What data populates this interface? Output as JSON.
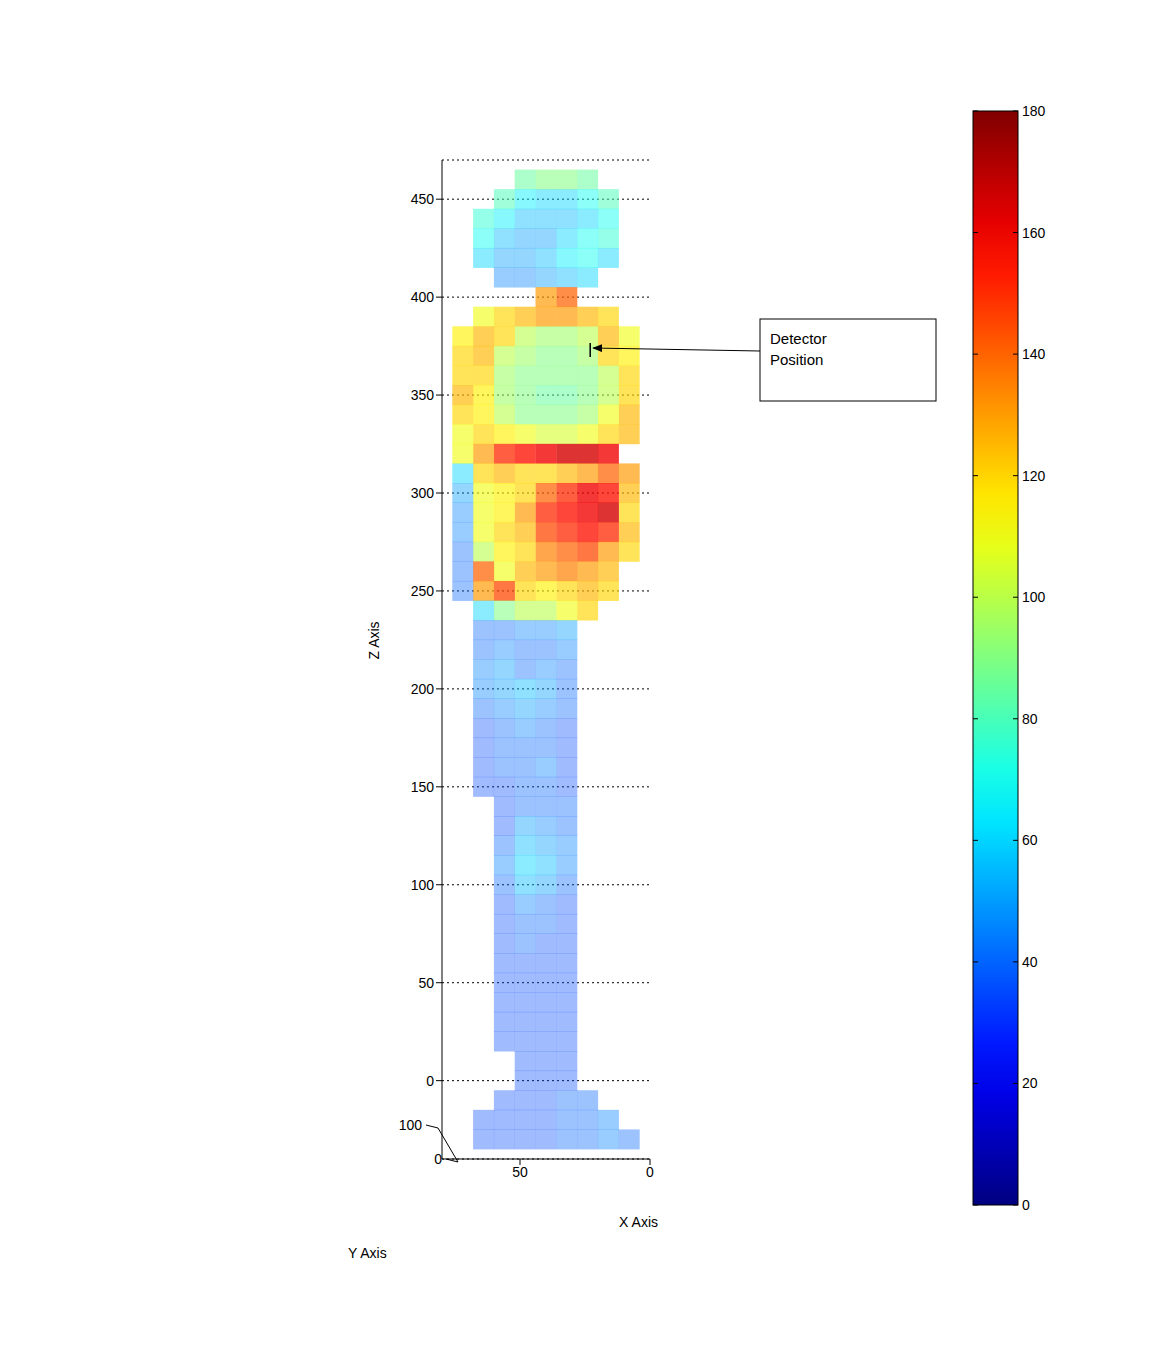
{
  "chart_data": {
    "type": "scatter",
    "x_label": "X Axis",
    "y_label": "Y Axis",
    "z_label": "Z Axis",
    "xlim": [
      0,
      80
    ],
    "xticks": [
      0,
      50
    ],
    "ylim": [
      0,
      100
    ],
    "yticks": [
      0,
      100
    ],
    "zlim": [
      -40,
      470
    ],
    "zticks": [
      0,
      50,
      100,
      150,
      200,
      250,
      300,
      350,
      400,
      450
    ],
    "grid": true,
    "annotation": {
      "text": "Detector Position",
      "x": 23,
      "z": 373
    },
    "colorbar": {
      "range": [
        0,
        180
      ],
      "ticks": [
        0,
        20,
        40,
        60,
        80,
        100,
        120,
        140,
        160,
        180
      ]
    },
    "voxels": {
      "x": [
        8,
        16,
        24,
        32,
        40,
        48,
        56,
        64,
        72
      ],
      "z": [
        460,
        450,
        440,
        430,
        420,
        410,
        400,
        390,
        380,
        370,
        360,
        350,
        340,
        330,
        320,
        310,
        300,
        290,
        280,
        270,
        260,
        250,
        240,
        230,
        220,
        210,
        200,
        190,
        180,
        170,
        160,
        150,
        140,
        130,
        120,
        110,
        100,
        90,
        80,
        70,
        60,
        50,
        40,
        30,
        20,
        10,
        0,
        -10,
        -20,
        -30
      ],
      "dose": [
        [
          null,
          null,
          85,
          90,
          90,
          85,
          null,
          null,
          null
        ],
        [
          null,
          80,
          70,
          60,
          60,
          65,
          80,
          null,
          null
        ],
        [
          null,
          70,
          60,
          55,
          55,
          55,
          65,
          75,
          null
        ],
        [
          null,
          75,
          70,
          60,
          50,
          50,
          55,
          70,
          null
        ],
        [
          null,
          60,
          70,
          65,
          55,
          50,
          50,
          60,
          null
        ],
        [
          null,
          null,
          60,
          55,
          50,
          45,
          45,
          null,
          null
        ],
        [
          null,
          null,
          null,
          140,
          130,
          null,
          null,
          null,
          null
        ],
        [
          null,
          120,
          125,
          130,
          130,
          125,
          120,
          110,
          null
        ],
        [
          110,
          125,
          100,
          95,
          95,
          100,
          120,
          125,
          115
        ],
        [
          115,
          120,
          95,
          90,
          90,
          95,
          100,
          125,
          120
        ],
        [
          120,
          100,
          90,
          90,
          90,
          90,
          95,
          120,
          120
        ],
        [
          120,
          100,
          90,
          85,
          85,
          90,
          95,
          115,
          125
        ],
        [
          125,
          110,
          95,
          90,
          90,
          90,
          100,
          115,
          120
        ],
        [
          125,
          120,
          110,
          105,
          105,
          110,
          115,
          120,
          110
        ],
        [
          null,
          160,
          165,
          165,
          160,
          155,
          150,
          130,
          110
        ],
        [
          130,
          140,
          130,
          125,
          120,
          120,
          125,
          120,
          60
        ],
        [
          125,
          155,
          160,
          150,
          140,
          120,
          115,
          110,
          50
        ],
        [
          120,
          165,
          160,
          155,
          150,
          130,
          115,
          110,
          45
        ],
        [
          125,
          150,
          155,
          150,
          145,
          125,
          120,
          110,
          45
        ],
        [
          120,
          130,
          145,
          140,
          135,
          120,
          115,
          100,
          40
        ],
        [
          null,
          125,
          130,
          135,
          130,
          125,
          110,
          140,
          40
        ],
        [
          null,
          120,
          125,
          120,
          115,
          120,
          145,
          130,
          40
        ],
        [
          null,
          null,
          120,
          110,
          100,
          100,
          90,
          60,
          null
        ],
        [
          null,
          null,
          null,
          50,
          45,
          45,
          40,
          40,
          null
        ],
        [
          null,
          null,
          null,
          45,
          40,
          40,
          45,
          40,
          null
        ],
        [
          null,
          null,
          null,
          40,
          45,
          40,
          50,
          45,
          null
        ],
        [
          null,
          null,
          null,
          40,
          50,
          55,
          50,
          45,
          null
        ],
        [
          null,
          null,
          null,
          40,
          45,
          50,
          45,
          40,
          null
        ],
        [
          null,
          null,
          null,
          35,
          40,
          45,
          40,
          35,
          null
        ],
        [
          null,
          null,
          null,
          35,
          40,
          40,
          40,
          35,
          null
        ],
        [
          null,
          null,
          null,
          35,
          45,
          40,
          40,
          35,
          null
        ],
        [
          null,
          null,
          null,
          35,
          40,
          40,
          35,
          35,
          null
        ],
        [
          null,
          null,
          null,
          40,
          40,
          40,
          35,
          null,
          null
        ],
        [
          null,
          null,
          null,
          40,
          45,
          50,
          35,
          null,
          null
        ],
        [
          null,
          null,
          null,
          45,
          50,
          55,
          40,
          null,
          null
        ],
        [
          null,
          null,
          null,
          45,
          55,
          60,
          45,
          null,
          null
        ],
        [
          null,
          null,
          null,
          40,
          50,
          55,
          40,
          null,
          null
        ],
        [
          null,
          null,
          null,
          35,
          40,
          45,
          35,
          null,
          null
        ],
        [
          null,
          null,
          null,
          35,
          40,
          40,
          35,
          null,
          null
        ],
        [
          null,
          null,
          null,
          35,
          35,
          40,
          35,
          null,
          null
        ],
        [
          null,
          null,
          null,
          35,
          35,
          35,
          35,
          null,
          null
        ],
        [
          null,
          null,
          null,
          35,
          35,
          35,
          35,
          null,
          null
        ],
        [
          null,
          null,
          null,
          35,
          35,
          35,
          35,
          null,
          null
        ],
        [
          null,
          null,
          null,
          35,
          35,
          35,
          35,
          null,
          null
        ],
        [
          null,
          null,
          null,
          35,
          35,
          35,
          35,
          null,
          null
        ],
        [
          null,
          null,
          null,
          35,
          35,
          35,
          null,
          null,
          null
        ],
        [
          null,
          null,
          null,
          35,
          35,
          35,
          null,
          null,
          null
        ],
        [
          null,
          null,
          40,
          40,
          35,
          35,
          35,
          null,
          null
        ],
        [
          null,
          45,
          40,
          40,
          35,
          35,
          35,
          35,
          null
        ],
        [
          40,
          45,
          40,
          40,
          35,
          35,
          35,
          35,
          null
        ]
      ]
    }
  }
}
